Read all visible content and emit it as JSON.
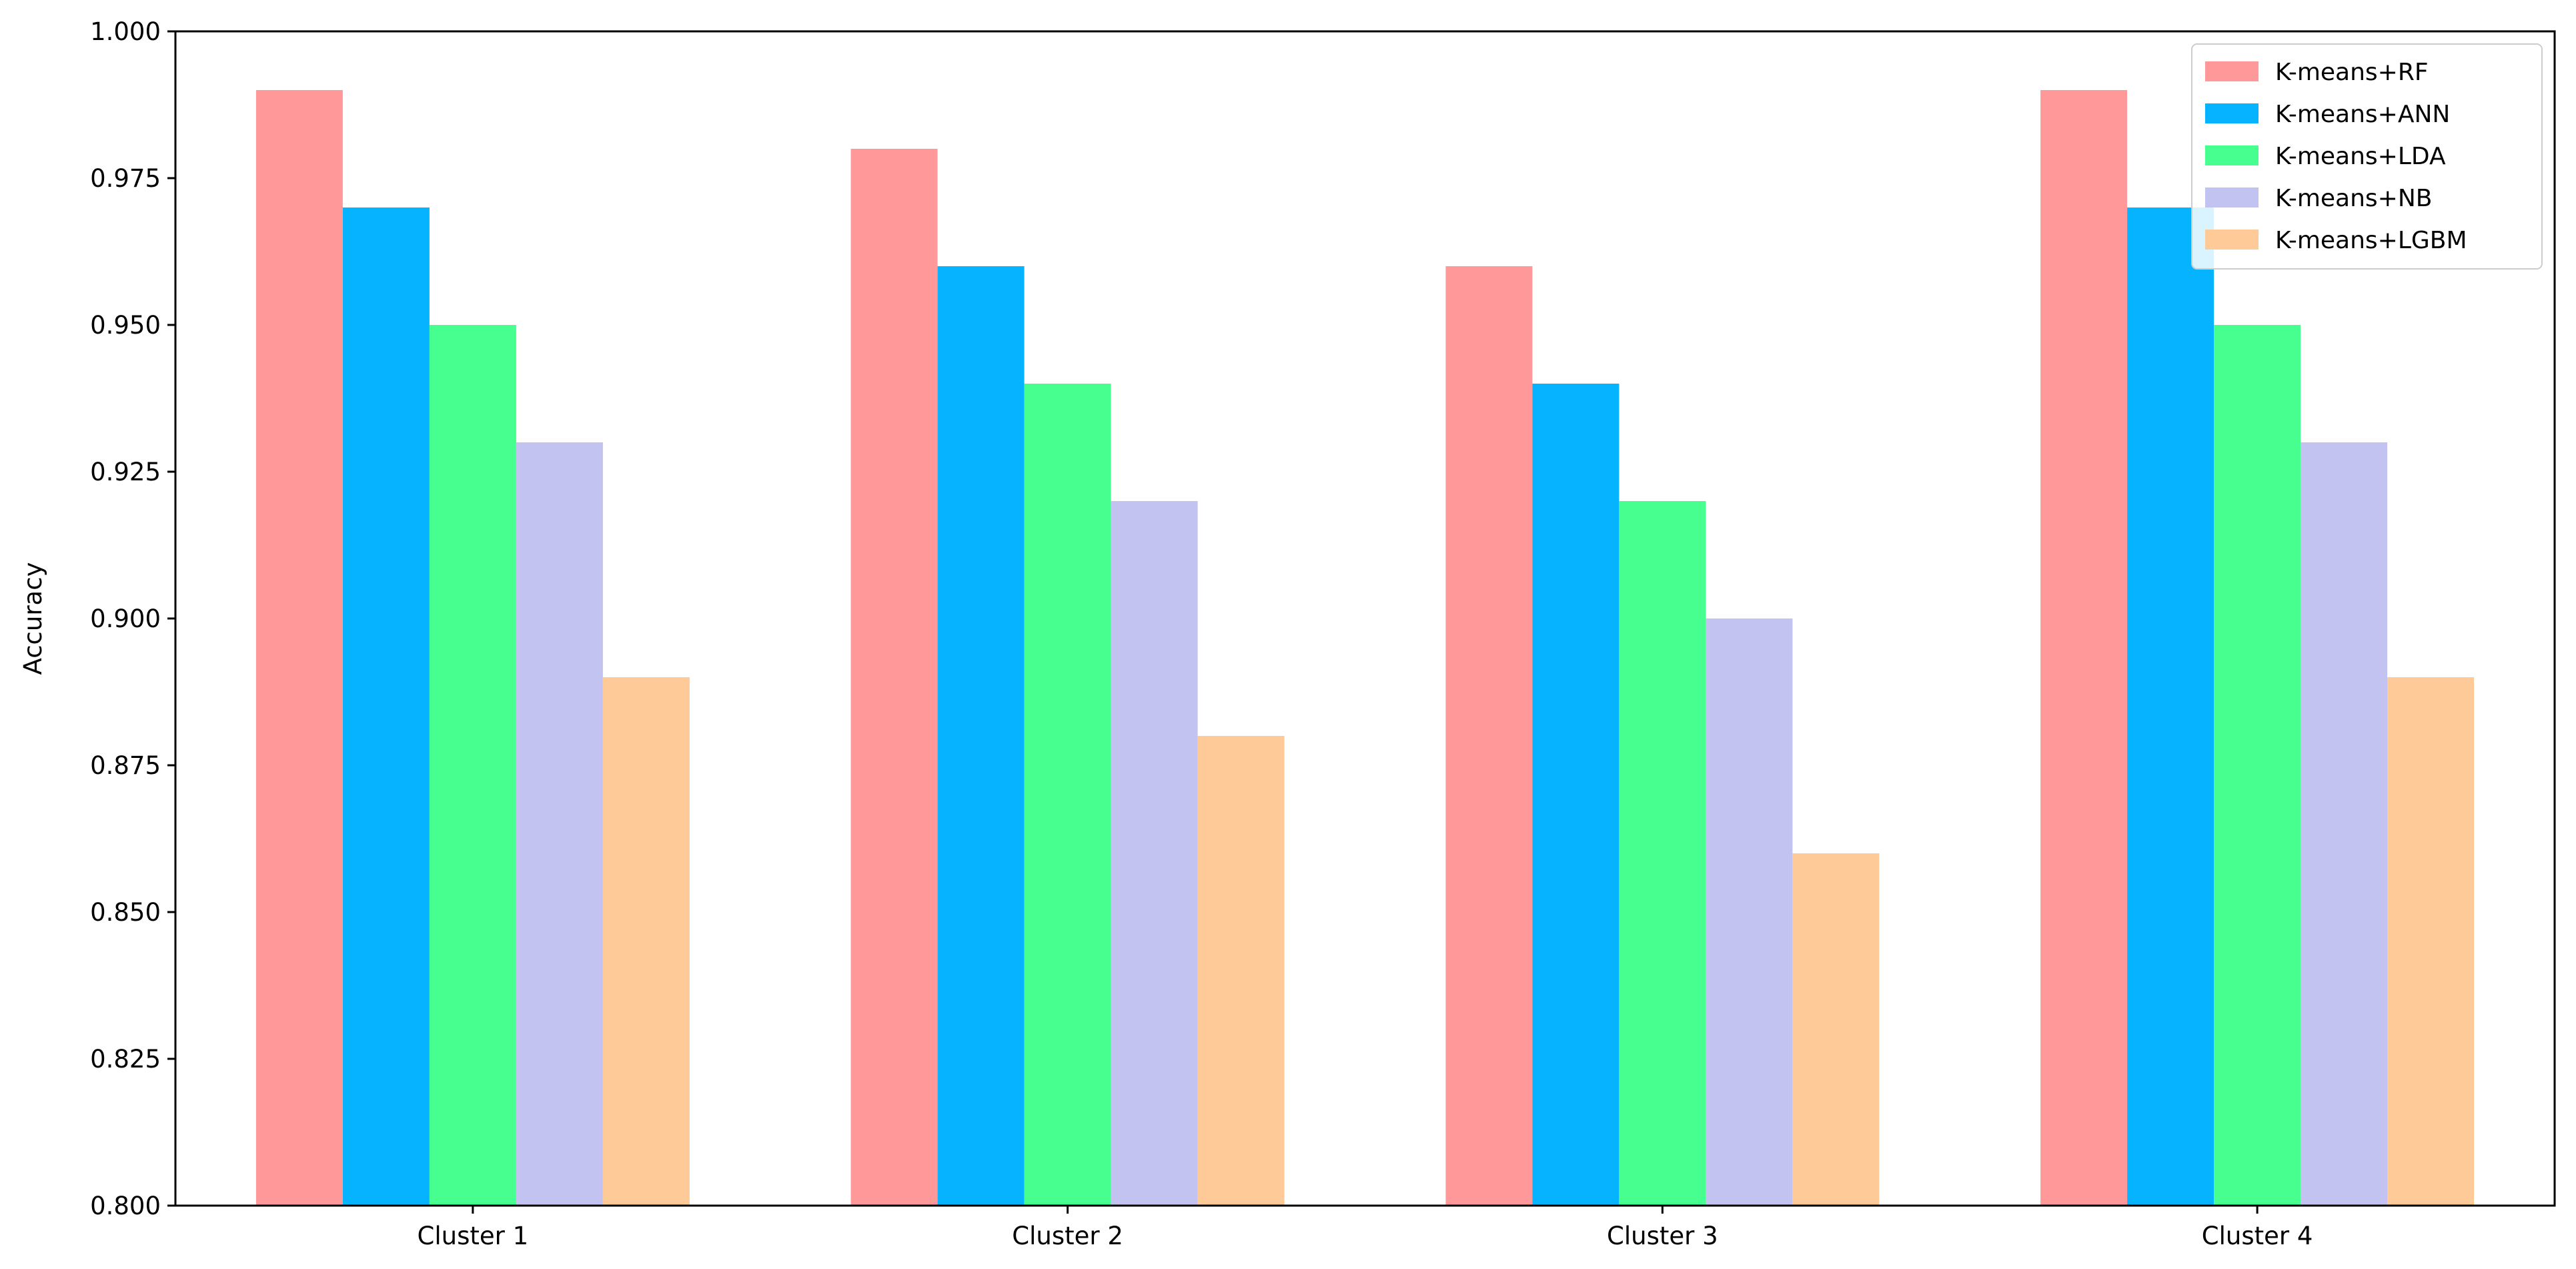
{
  "chart_data": {
    "type": "bar",
    "categories": [
      "Cluster 1",
      "Cluster 2",
      "Cluster 3",
      "Cluster 4"
    ],
    "series": [
      {
        "name": "K-means+RF",
        "color": "#FF9999",
        "values": [
          0.99,
          0.98,
          0.96,
          0.99
        ]
      },
      {
        "name": "K-means+ANN",
        "color": "#06B3FE",
        "values": [
          0.97,
          0.96,
          0.94,
          0.97
        ]
      },
      {
        "name": "K-means+LDA",
        "color": "#46FF8E",
        "values": [
          0.95,
          0.94,
          0.92,
          0.95
        ]
      },
      {
        "name": "K-means+NB",
        "color": "#C3C3F1",
        "values": [
          0.93,
          0.92,
          0.9,
          0.93
        ]
      },
      {
        "name": "K-means+LGBM",
        "color": "#FECA97",
        "values": [
          0.89,
          0.88,
          0.86,
          0.89
        ]
      }
    ],
    "title": "",
    "xlabel": "",
    "ylabel": "Accuracy",
    "ylim": [
      0.8,
      1.0
    ],
    "yticks": [
      "0.800",
      "0.825",
      "0.850",
      "0.875",
      "0.900",
      "0.925",
      "0.950",
      "0.975",
      "1.000"
    ],
    "grid": false,
    "legend_position": "top-right"
  }
}
